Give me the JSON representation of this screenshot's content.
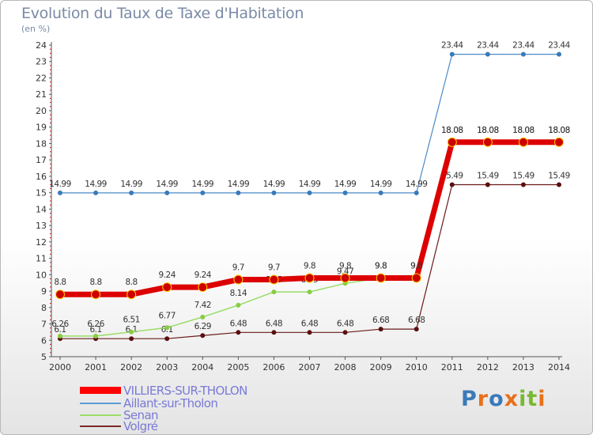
{
  "chart_data": {
    "type": "line",
    "title": "Evolution du Taux de Taxe d'Habitation",
    "unit": "(en %)",
    "x": [
      "2000",
      "2001",
      "2002",
      "2003",
      "2004",
      "2005",
      "2006",
      "2007",
      "2008",
      "2009",
      "2010",
      "2011",
      "2012",
      "2013",
      "2014"
    ],
    "ylim": [
      5,
      24
    ],
    "yticks": [
      "5",
      "6",
      "7",
      "8",
      "9",
      "10",
      "11",
      "12",
      "13",
      "14",
      "15",
      "16",
      "17",
      "18",
      "19",
      "20",
      "21",
      "22",
      "23",
      "24"
    ],
    "grid": false,
    "legend_position": "bottom-left",
    "series": [
      {
        "name": "VILLIERS-SUR-THOLON",
        "color": "#ff0000",
        "values": [
          8.8,
          8.8,
          8.8,
          9.24,
          9.24,
          9.7,
          9.7,
          9.8,
          9.8,
          9.8,
          9.8,
          18.08,
          18.08,
          18.08,
          18.08
        ],
        "labels": [
          "8.8",
          "8.8",
          "8.8",
          "9.24",
          "9.24",
          "9.7",
          "9.7",
          "9.8",
          "9.8",
          "9.8",
          "9.8",
          "18.08",
          "18.08",
          "18.08",
          "18.08"
        ]
      },
      {
        "name": "Aillant-sur-Tholon",
        "color": "#5b9bd5",
        "values": [
          14.99,
          14.99,
          14.99,
          14.99,
          14.99,
          14.99,
          14.99,
          14.99,
          14.99,
          14.99,
          14.99,
          23.44,
          23.44,
          23.44,
          23.44
        ],
        "labels": [
          "14.99",
          "14.99",
          "14.99",
          "14.99",
          "14.99",
          "14.99",
          "14.99",
          "14.99",
          "14.99",
          "14.99",
          "14.99",
          "23.44",
          "23.44",
          "23.44",
          "23.44"
        ]
      },
      {
        "name": "Senan",
        "color": "#99dd66",
        "values": [
          6.26,
          6.26,
          6.51,
          6.77,
          7.42,
          8.14,
          8.95,
          8.95,
          9.47,
          9.8,
          9.8,
          18.08,
          18.08,
          18.08,
          18.08
        ],
        "labels": [
          "6.26",
          "6.26",
          "6.51",
          "6.77",
          "7.42",
          "8.14",
          "8.95",
          "8.95",
          "9.47",
          "9.8",
          "9.8",
          "18.08",
          "18.08",
          "18.08",
          "18.08"
        ]
      },
      {
        "name": "Volgré",
        "color": "#7a2a2a",
        "values": [
          6.1,
          6.1,
          6.1,
          6.1,
          6.29,
          6.48,
          6.48,
          6.48,
          6.48,
          6.68,
          6.68,
          15.49,
          15.49,
          15.49,
          15.49
        ],
        "labels": [
          "6.1",
          "6.1",
          "6.1",
          "6.1",
          "6.29",
          "6.48",
          "6.48",
          "6.48",
          "6.48",
          "6.68",
          "6.68",
          "15.49",
          "15.49",
          "15.49",
          "15.49"
        ]
      }
    ]
  },
  "logo": {
    "text": "Proxiti"
  }
}
